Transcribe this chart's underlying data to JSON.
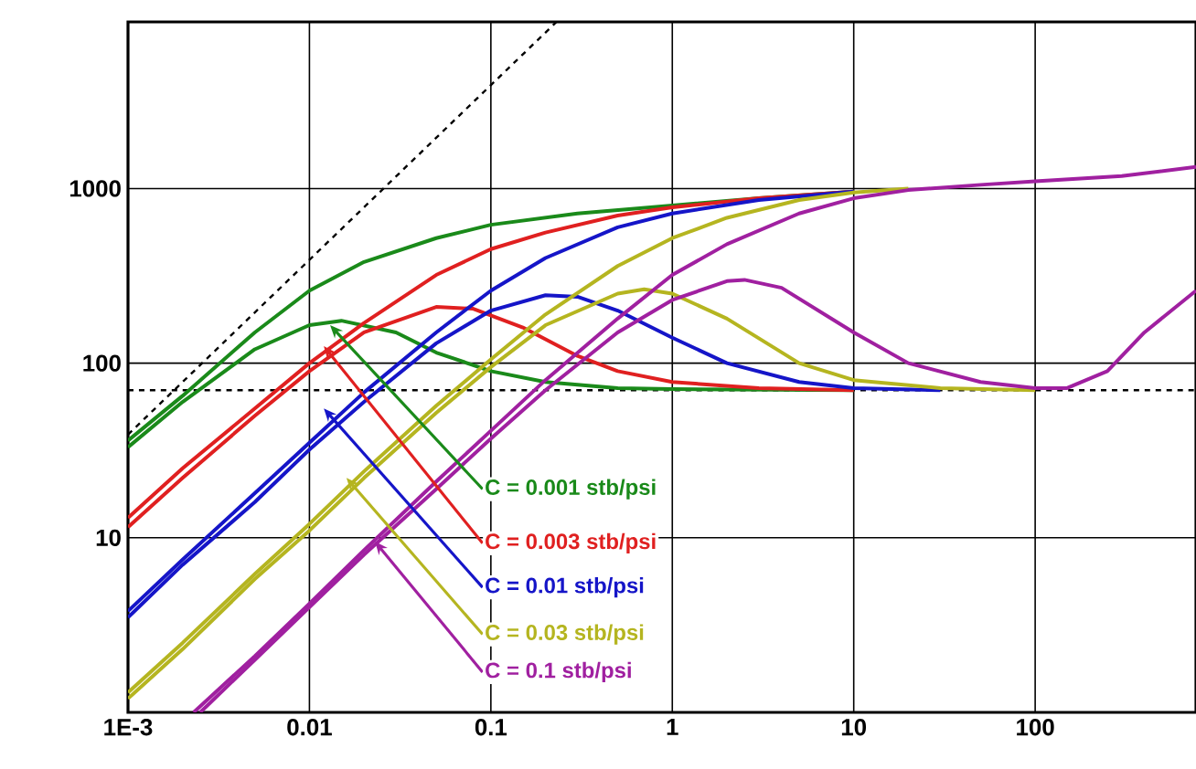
{
  "chart_data": {
    "type": "line",
    "log": "xy",
    "grid": true,
    "xlim": [
      0.001,
      770
    ],
    "ylim": [
      1,
      9000
    ],
    "xticks": [
      {
        "value": 0.001,
        "label": "1E-3"
      },
      0.01,
      0.1,
      1,
      10,
      100
    ],
    "yticks": [
      10,
      100,
      1000
    ],
    "ref_lines": [
      {
        "axis": "y",
        "value": 70,
        "color": "#000000",
        "line_style": "dashed"
      }
    ],
    "series": [
      {
        "color": "#000000",
        "line_style": "dashed",
        "x": [
          0.001,
          0.23
        ],
        "values": [
          39,
          9000
        ]
      },
      {
        "color": "#1a8a1a",
        "x": [
          0.001,
          0.002,
          0.005,
          0.01,
          0.02,
          0.05,
          0.1,
          0.3,
          1,
          3,
          10
        ],
        "values": [
          36,
          65,
          150,
          260,
          380,
          520,
          620,
          720,
          800,
          880,
          960
        ]
      },
      {
        "name": "C = 0.001 stb/psi",
        "color": "#1a8a1a",
        "x": [
          0.001,
          0.002,
          0.005,
          0.01,
          0.015,
          0.03,
          0.05,
          0.1,
          0.2,
          0.5,
          1,
          10
        ],
        "values": [
          33,
          60,
          120,
          165,
          175,
          150,
          115,
          90,
          78,
          72,
          71,
          70
        ]
      },
      {
        "color": "#e02020",
        "x": [
          0.001,
          0.002,
          0.005,
          0.01,
          0.02,
          0.05,
          0.1,
          0.2,
          0.5,
          1,
          3,
          10
        ],
        "values": [
          13,
          25,
          55,
          100,
          170,
          320,
          450,
          560,
          700,
          780,
          880,
          960
        ]
      },
      {
        "name": "C = 0.003 stb/psi",
        "color": "#e02020",
        "x": [
          0.001,
          0.002,
          0.005,
          0.01,
          0.02,
          0.05,
          0.08,
          0.15,
          0.3,
          0.5,
          1,
          3,
          10
        ],
        "values": [
          11.5,
          22,
          50,
          90,
          150,
          210,
          205,
          160,
          110,
          90,
          78,
          72,
          70
        ]
      },
      {
        "color": "#1515c8",
        "x": [
          0.001,
          0.002,
          0.005,
          0.01,
          0.02,
          0.05,
          0.1,
          0.2,
          0.5,
          1,
          3,
          10
        ],
        "values": [
          3.8,
          7.5,
          18,
          35,
          68,
          150,
          260,
          400,
          600,
          720,
          860,
          960
        ]
      },
      {
        "name": "C = 0.01 stb/psi",
        "color": "#1515c8",
        "x": [
          0.001,
          0.002,
          0.005,
          0.01,
          0.02,
          0.05,
          0.1,
          0.2,
          0.3,
          0.5,
          1,
          2,
          5,
          10,
          30
        ],
        "values": [
          3.5,
          7,
          16,
          32,
          60,
          130,
          200,
          245,
          240,
          200,
          140,
          100,
          78,
          72,
          70
        ]
      },
      {
        "color": "#b5b520",
        "x": [
          0.001,
          0.002,
          0.005,
          0.01,
          0.02,
          0.05,
          0.1,
          0.2,
          0.5,
          1,
          2,
          5,
          10,
          20
        ],
        "values": [
          1.3,
          2.5,
          6.2,
          12,
          24,
          57,
          105,
          190,
          360,
          520,
          680,
          860,
          950,
          1000
        ]
      },
      {
        "name": "C = 0.03 stb/psi",
        "color": "#b5b520",
        "x": [
          0.001,
          0.002,
          0.005,
          0.01,
          0.02,
          0.05,
          0.1,
          0.2,
          0.5,
          0.7,
          1,
          2,
          5,
          10,
          30,
          100
        ],
        "values": [
          1.2,
          2.3,
          5.8,
          11,
          22,
          52,
          95,
          165,
          250,
          265,
          250,
          180,
          100,
          80,
          72,
          70
        ]
      },
      {
        "color": "#a020a0",
        "x": [
          0.0023,
          0.005,
          0.01,
          0.02,
          0.05,
          0.1,
          0.2,
          0.5,
          1,
          2,
          5,
          10,
          20,
          50,
          100,
          300,
          770
        ],
        "values": [
          1,
          2.1,
          4.2,
          8.5,
          21,
          41,
          80,
          180,
          320,
          480,
          720,
          880,
          980,
          1050,
          1100,
          1180,
          1330
        ]
      },
      {
        "name": "C = 0.1 stb/psi",
        "color": "#a020a0",
        "x": [
          0.0025,
          0.005,
          0.01,
          0.02,
          0.05,
          0.1,
          0.2,
          0.5,
          1,
          2,
          2.5,
          4,
          10,
          20,
          50,
          100,
          150,
          250,
          400,
          770
        ],
        "values": [
          1,
          2,
          4,
          8,
          19,
          37,
          70,
          150,
          230,
          295,
          300,
          270,
          150,
          100,
          78,
          72,
          72,
          90,
          150,
          260
        ]
      }
    ]
  }
}
